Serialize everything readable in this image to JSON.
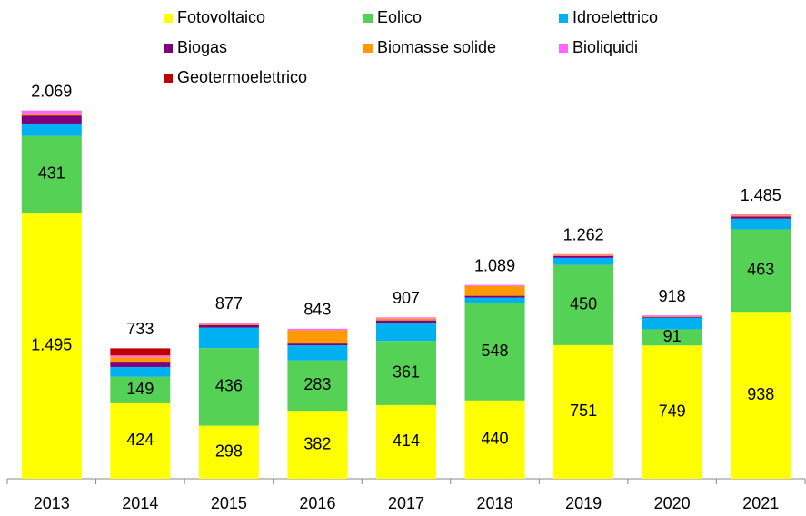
{
  "chart_data": {
    "type": "stacked_bar",
    "categories": [
      "2013",
      "2014",
      "2015",
      "2016",
      "2017",
      "2018",
      "2019",
      "2020",
      "2021"
    ],
    "series": [
      {
        "name": "Fotovoltaico",
        "color": "#ffff00",
        "values": [
          1495,
          424,
          298,
          382,
          414,
          440,
          751,
          749,
          938
        ],
        "value_labels": [
          "1.495",
          "424",
          "298",
          "382",
          "414",
          "440",
          "751",
          "749",
          "938"
        ]
      },
      {
        "name": "Eolico",
        "color": "#55d155",
        "values": [
          431,
          149,
          436,
          283,
          361,
          548,
          450,
          91,
          463
        ],
        "show_labels": true
      },
      {
        "name": "Idroelettrico",
        "color": "#00b0f0",
        "values": [
          70,
          55,
          115,
          85,
          100,
          30,
          40,
          65,
          60
        ]
      },
      {
        "name": "Biogas",
        "color": "#7f007f",
        "values": [
          45,
          25,
          15,
          10,
          15,
          10,
          10,
          5,
          12
        ]
      },
      {
        "name": "Biomasse solide",
        "color": "#ff9900",
        "values": [
          8,
          30,
          5,
          75,
          10,
          55,
          6,
          3,
          7
        ]
      },
      {
        "name": "Bioliquidi",
        "color": "#ff66ff",
        "values": [
          20,
          10,
          8,
          8,
          7,
          6,
          5,
          5,
          5
        ]
      },
      {
        "name": "Geotermoelettrico",
        "color": "#c00000",
        "values": [
          0,
          40,
          0,
          0,
          0,
          0,
          0,
          0,
          0
        ]
      }
    ],
    "totals": {
      "values": [
        2069,
        733,
        877,
        843,
        907,
        1089,
        1262,
        918,
        1485
      ],
      "value_labels": [
        "2.069",
        "733",
        "877",
        "843",
        "907",
        "1.089",
        "1.262",
        "918",
        "1.485"
      ]
    },
    "ylim": [
      0,
      2200
    ]
  }
}
